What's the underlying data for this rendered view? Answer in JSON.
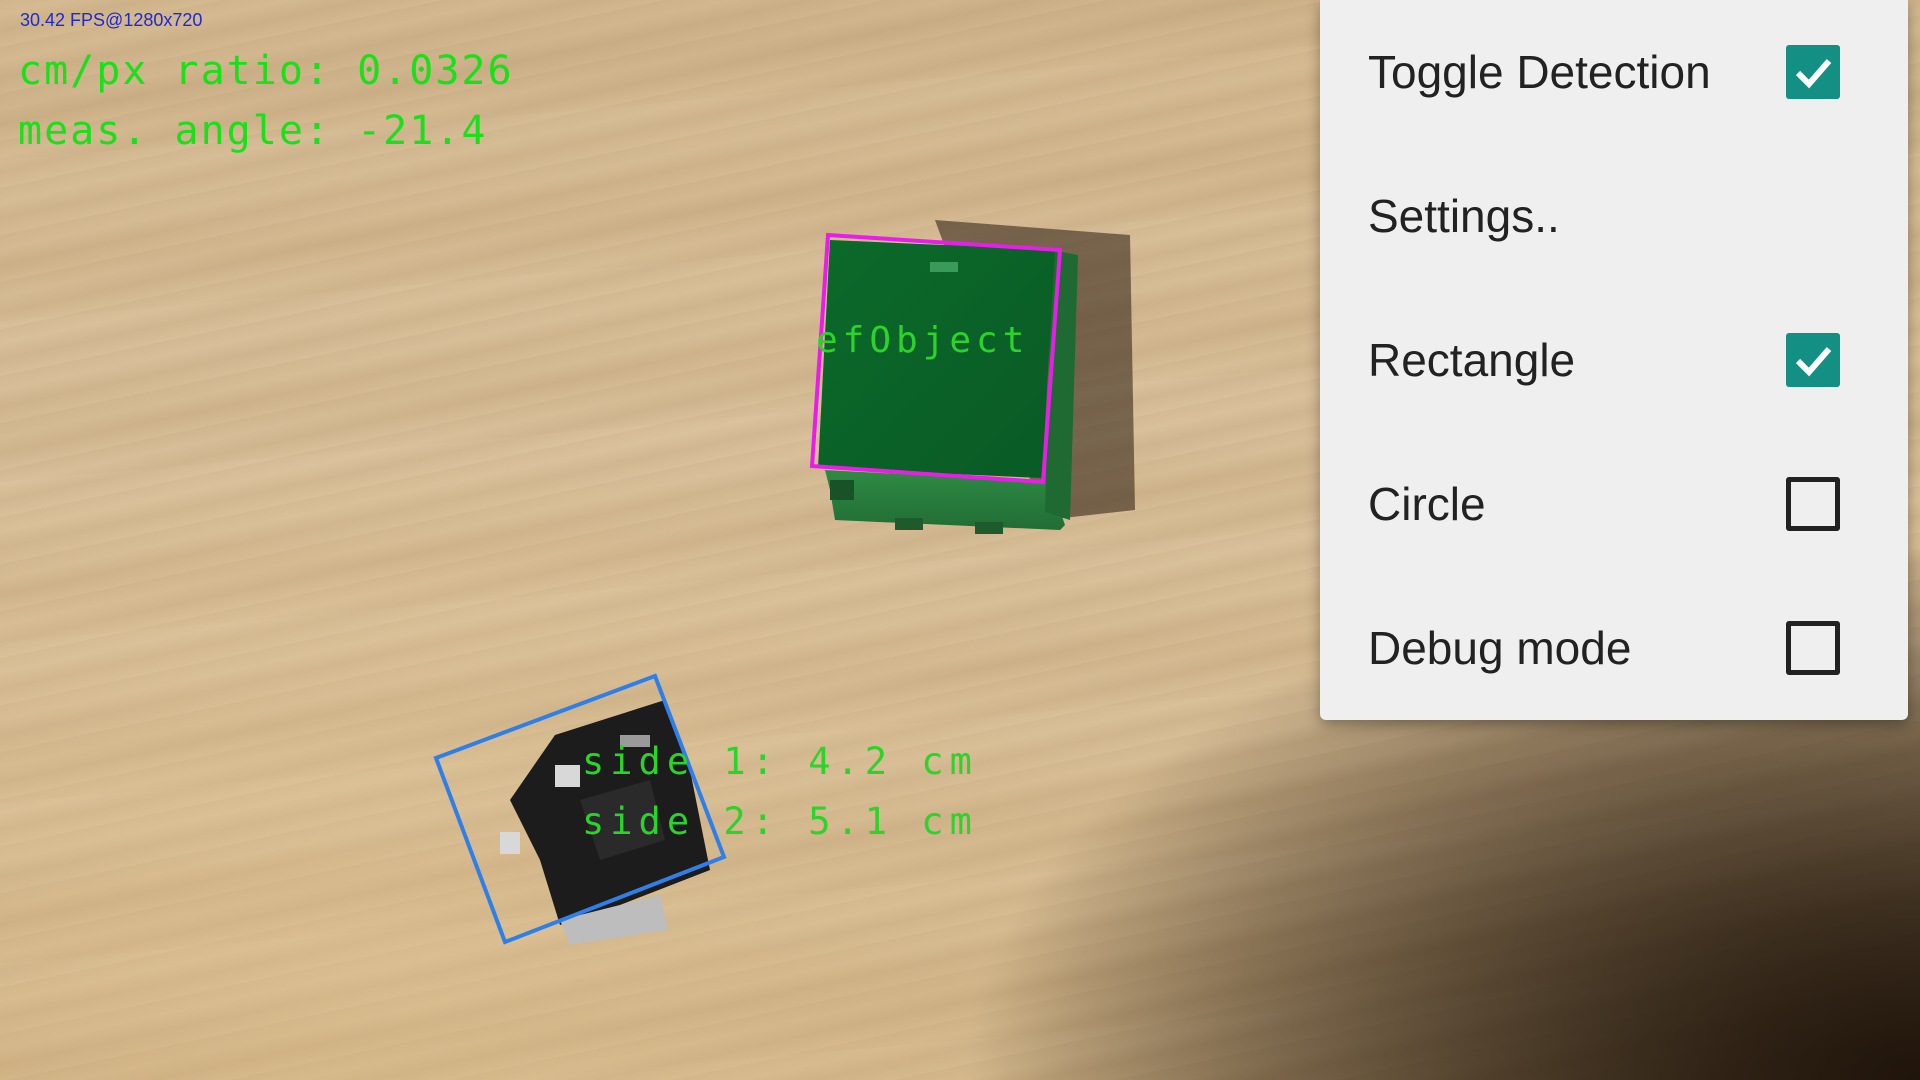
{
  "hud": {
    "fps_text": "30.42 FPS@1280x720",
    "ratio_text": "cm/px ratio: 0.0326",
    "angle_text": "meas. angle: -21.4"
  },
  "overlays": {
    "ref_object_label": "efObject",
    "side1_text": "side 1: 4.2 cm",
    "side2_text": "side 2: 5.1 cm"
  },
  "colors": {
    "ref_box": "#e81ee8",
    "measured_box": "#2f7fe8",
    "overlay_text": "#2bd32b",
    "checkbox_checked": "#138f84"
  },
  "menu": {
    "items": [
      {
        "label": "Toggle Detection",
        "checkbox": true,
        "checked": true
      },
      {
        "label": "Settings..",
        "checkbox": false,
        "checked": false
      },
      {
        "label": "Rectangle",
        "checkbox": true,
        "checked": true
      },
      {
        "label": "Circle",
        "checkbox": true,
        "checked": false
      },
      {
        "label": "Debug mode",
        "checkbox": true,
        "checked": false
      }
    ]
  }
}
